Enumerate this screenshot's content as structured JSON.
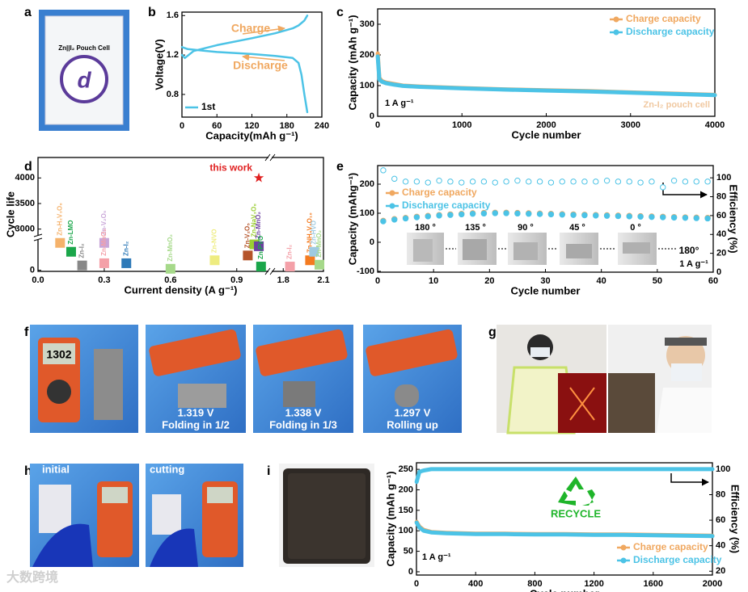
{
  "figure": {
    "panel_labels": [
      "a",
      "b",
      "c",
      "d",
      "e",
      "f",
      "g",
      "h",
      "i"
    ],
    "panel_a": {
      "label": "Zn||I₂ Pouch Cell"
    },
    "panel_f": {
      "captions": [
        "1.319 V",
        "Folding in 1/2",
        "1.338 V",
        "Folding in 1/3",
        "1.297 V",
        "Rolling up"
      ]
    },
    "panel_h": {
      "captions": [
        "initial",
        "cutting"
      ]
    },
    "watermark": "大数跨境"
  },
  "chart_data": [
    {
      "type": "line",
      "xlabel": "Capacity(mAh g⁻¹)",
      "ylabel": "Voltage(V)",
      "xlim": [
        0,
        240
      ],
      "xticks": [
        0,
        60,
        120,
        180,
        240
      ],
      "ylim": [
        0.57,
        1.635
      ],
      "yticks": [
        0.8,
        1.2,
        1.6
      ],
      "legend": "lower left",
      "annotations": [
        "Charge",
        "Discharge"
      ],
      "series": [
        {
          "name": "1st",
          "color": "#4cc3e6",
          "x": [
            0,
            5,
            20,
            60,
            120,
            160,
            190,
            200,
            210,
            215,
            null,
            0,
            10,
            60,
            120,
            160,
            190,
            200,
            205,
            210,
            215
          ],
          "values": [
            1.2,
            1.17,
            1.24,
            1.3,
            1.37,
            1.42,
            1.47,
            1.5,
            1.55,
            1.6,
            null,
            1.28,
            1.26,
            1.23,
            1.21,
            1.19,
            1.17,
            1.12,
            1.0,
            0.8,
            0.62
          ]
        }
      ]
    },
    {
      "type": "line",
      "xlabel": "Cycle number",
      "ylabel": "Capacity (mAh g⁻¹)",
      "xlim": [
        0,
        4000
      ],
      "xticks": [
        0,
        1000,
        2000,
        3000,
        4000
      ],
      "ylim": [
        0,
        350
      ],
      "yticks": [
        0,
        100,
        200,
        300
      ],
      "legend": "upper right",
      "annotations": [
        "1 A g⁻¹",
        "Zn-I₂  pouch cell"
      ],
      "x": [
        1,
        20,
        50,
        100,
        200,
        300,
        500,
        700,
        1000,
        1500,
        2000,
        2500,
        3000,
        3500,
        4000
      ],
      "series": [
        {
          "name": "Charge capacity",
          "color": "#f0a860",
          "values": [
            205,
            125,
            115,
            110,
            105,
            100,
            97,
            95,
            92,
            88,
            85,
            82,
            78,
            74,
            70
          ]
        },
        {
          "name": "Discharge capacity",
          "color": "#4cc3e6",
          "values": [
            195,
            120,
            113,
            108,
            103,
            99,
            96,
            94,
            91,
            87,
            84,
            81,
            77,
            73,
            69
          ]
        }
      ]
    },
    {
      "type": "scatter",
      "xlabel": "Current density (A g⁻¹)",
      "ylabel": "Cycle life",
      "xlim": [
        0,
        2.1
      ],
      "xbreak": [
        1.04,
        1.72
      ],
      "xticks": [
        {
          "value": 0,
          "label": "0.0"
        },
        0.3,
        0.6,
        0.9,
        1.8,
        2.1
      ],
      "ylim": [
        -30,
        4400
      ],
      "ybreak": [
        800,
        2900
      ],
      "yticks": [
        0,
        3000,
        3500,
        4000
      ],
      "marker": "square",
      "labels": [
        "Zn-H₂V₃O₈",
        "Zn-LMO",
        "Zn-I₂",
        "Zn-V₂O₅",
        "Zn-MnO₂",
        "Zn-I₂",
        "Zn-MnO₂",
        "Zn-NVO",
        "Zn-V₂O₅",
        "Zn-NaV₃O₈",
        "Zn-MnO₂",
        "Zn-PVO",
        "Zn-I₂",
        "Zn-NH₄V₄O₁₀",
        "Zn-HVO",
        "Zn-MnO₂"
      ],
      "x": [
        0.1,
        0.15,
        0.2,
        0.3,
        0.3,
        0.4,
        0.6,
        0.8,
        0.95,
        0.98,
        1.0,
        1.01,
        1.85,
        2.0,
        2.03,
        2.07
      ],
      "values": [
        740,
        500,
        130,
        740,
        190,
        190,
        40,
        270,
        400,
        700,
        650,
        100,
        100,
        270,
        500,
        150
      ],
      "colors": [
        "#f5b26b",
        "#1aa64a",
        "#888888",
        "#c9a6d8",
        "#f4a0a8",
        "#2e7ab8",
        "#a6d98a",
        "#eeec80",
        "#b5542a",
        "#9acd32",
        "#6b3fa0",
        "#1aa64a",
        "#f4a0a8",
        "#f47b20",
        "#9ecae1",
        "#a6d98a"
      ],
      "highlight": {
        "label": "this work",
        "x": 1.0,
        "value": 4000,
        "color": "#e02020"
      }
    },
    {
      "type": "scatter",
      "xlabel": "Cycle number",
      "ylabel": "Capacity (mAhg⁻¹)",
      "y2label": "Efficiency (%)",
      "xlim": [
        0,
        60
      ],
      "xticks": [
        0,
        10,
        20,
        30,
        40,
        50,
        60
      ],
      "ylim": [
        -103,
        264
      ],
      "yticks": [
        -100,
        0,
        100,
        200
      ],
      "y2lim": [
        0,
        113
      ],
      "y2ticks": [
        0,
        20,
        40,
        60,
        80,
        100
      ],
      "legend": "center left",
      "annotations": [
        "180 °",
        "135 °",
        "90 °",
        "45 °",
        "0 °",
        "180°",
        "1 A g⁻¹"
      ],
      "x": [
        1,
        3,
        5,
        7,
        9,
        11,
        13,
        15,
        17,
        19,
        21,
        23,
        25,
        27,
        29,
        31,
        33,
        35,
        37,
        39,
        41,
        43,
        45,
        47,
        49,
        51,
        53,
        55,
        57,
        59
      ],
      "series": [
        {
          "name": "Charge capacity",
          "color": "#f0a860",
          "values": [
            74,
            80,
            84,
            88,
            91,
            94,
            96,
            98,
            100,
            101,
            102,
            102,
            101,
            100,
            99,
            98,
            97,
            96,
            95,
            94,
            93,
            92,
            91,
            90,
            89,
            88,
            87,
            86,
            85,
            84
          ]
        },
        {
          "name": "Discharge capacity",
          "color": "#4cc3e6",
          "values": [
            72,
            78,
            82,
            86,
            89,
            92,
            94,
            96,
            98,
            99,
            100,
            100,
            99,
            98,
            97,
            96,
            95,
            94,
            93,
            92,
            91,
            90,
            89,
            88,
            87,
            86,
            85,
            84,
            83,
            82
          ]
        },
        {
          "color": "#4cc3e6",
          "axis": "y2",
          "hollow": true,
          "values": [
            108,
            99,
            96,
            96,
            95,
            97,
            96,
            95,
            96,
            96,
            95,
            96,
            97,
            96,
            96,
            95,
            96,
            96,
            96,
            96,
            97,
            96,
            96,
            95,
            96,
            90,
            97,
            96,
            96,
            96
          ]
        }
      ]
    },
    {
      "type": "line",
      "xlabel": "Cycle number",
      "ylabel": "Capacity (mAh g⁻¹)",
      "y2label": "Efficiency (%)",
      "xlim": [
        0,
        2000
      ],
      "xticks": [
        0,
        400,
        800,
        1200,
        1600,
        2000
      ],
      "ylim": [
        -8,
        266
      ],
      "yticks": [
        0,
        50,
        100,
        150,
        200,
        250
      ],
      "y2lim": [
        17,
        105
      ],
      "y2ticks": [
        20,
        40,
        60,
        80,
        100
      ],
      "legend": "lower right",
      "annotations": [
        "RECYCLE",
        "1 A g⁻¹"
      ],
      "x": [
        1,
        20,
        50,
        100,
        200,
        300,
        400,
        600,
        800,
        1000,
        1200,
        1400,
        1600,
        1800,
        2000
      ],
      "series": [
        {
          "name": "Charge capacity",
          "color": "#f0a860",
          "values": [
            122,
            110,
            102,
            97,
            95,
            94,
            93,
            93,
            92,
            92,
            91,
            91,
            90,
            89,
            88
          ]
        },
        {
          "name": "Discharge capacity",
          "color": "#4cc3e6",
          "values": [
            120,
            108,
            100,
            96,
            94,
            93,
            92,
            92,
            91,
            91,
            90,
            90,
            89,
            88,
            87
          ]
        },
        {
          "color": "#4cc3e6",
          "axis": "y2",
          "values": [
            90,
            98,
            99,
            100,
            100,
            100,
            100,
            100,
            100,
            100,
            100,
            100,
            100,
            100,
            100
          ]
        }
      ]
    }
  ]
}
